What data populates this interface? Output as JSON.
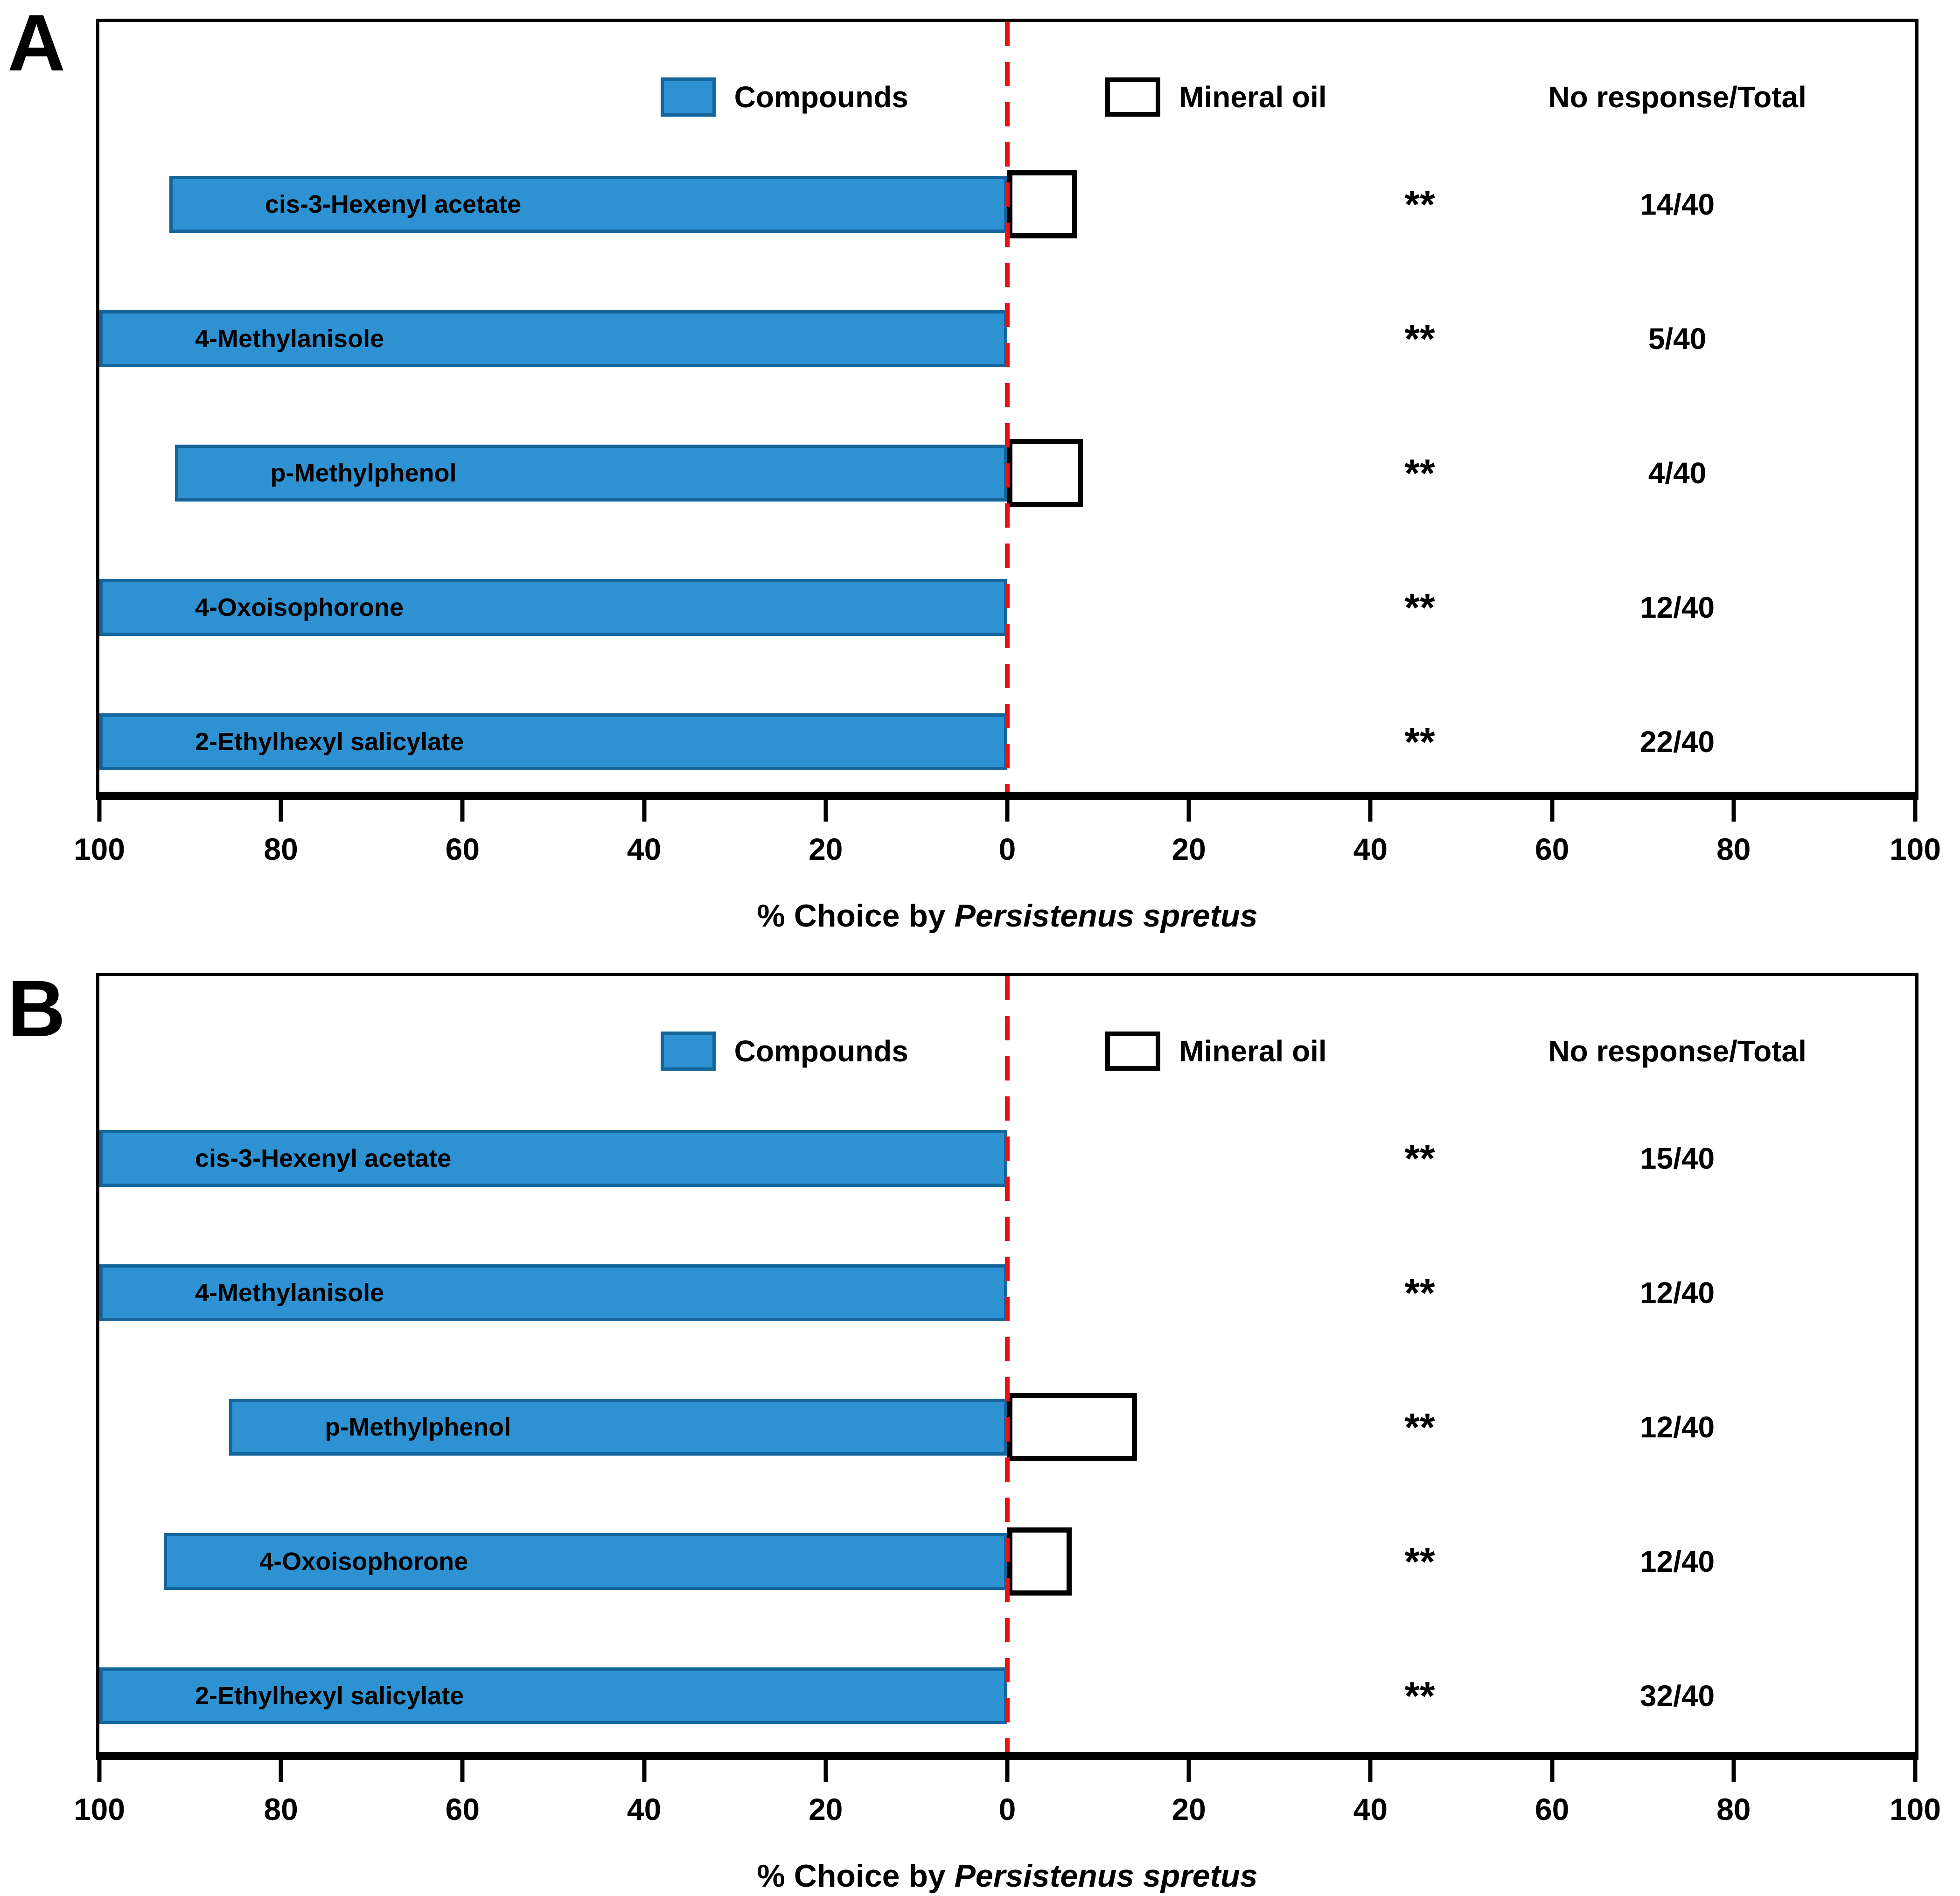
{
  "page": {
    "panel_labels": [
      "A",
      "B"
    ],
    "background": "#ffffff"
  },
  "colors": {
    "compound_fill": "#2E92D2",
    "compound_stroke": "#15659D",
    "mineral_oil_fill": "#FFFFFF",
    "mineral_oil_stroke": "#000000",
    "zero_line": "#EE1111",
    "axis": "#000000",
    "text": "#000000"
  },
  "chart_data": [
    {
      "type": "bar",
      "panel_label": "A",
      "orientation": "horizontal-diverging",
      "legend_position": "top-inside",
      "grid": false,
      "legend": [
        {
          "name": "compounds",
          "label": "Compounds"
        },
        {
          "name": "mineral-oil",
          "label": "Mineral oil"
        }
      ],
      "extra_column_header": "No response/Total",
      "x_axis": {
        "tick_labels": [
          "100",
          "80",
          "60",
          "40",
          "20",
          "0",
          "20",
          "40",
          "60",
          "80",
          "100"
        ],
        "left_range": [
          100,
          0
        ],
        "right_range": [
          0,
          100
        ],
        "title_prefix": "% Choice by ",
        "title_species": "Persistenus spretus"
      },
      "rows": [
        {
          "compound": "cis-3-Hexenyl acetate",
          "compound_pct": 92.3,
          "mineral_oil_pct": 7.7,
          "significance": "**",
          "no_response_total": "14/40"
        },
        {
          "compound": "4-Methylanisole",
          "compound_pct": 100,
          "mineral_oil_pct": 0,
          "significance": "**",
          "no_response_total": "5/40"
        },
        {
          "compound": "p-Methylphenol",
          "compound_pct": 91.7,
          "mineral_oil_pct": 8.3,
          "significance": "**",
          "no_response_total": "4/40"
        },
        {
          "compound": "4-Oxoisophorone",
          "compound_pct": 100,
          "mineral_oil_pct": 0,
          "significance": "**",
          "no_response_total": "12/40"
        },
        {
          "compound": "2-Ethylhexyl salicylate",
          "compound_pct": 100,
          "mineral_oil_pct": 0,
          "significance": "**",
          "no_response_total": "22/40"
        }
      ]
    },
    {
      "type": "bar",
      "panel_label": "B",
      "orientation": "horizontal-diverging",
      "legend_position": "top-inside",
      "grid": false,
      "legend": [
        {
          "name": "compounds",
          "label": "Compounds"
        },
        {
          "name": "mineral-oil",
          "label": "Mineral oil"
        }
      ],
      "extra_column_header": "No response/Total",
      "x_axis": {
        "tick_labels": [
          "100",
          "80",
          "60",
          "40",
          "20",
          "0",
          "20",
          "40",
          "60",
          "80",
          "100"
        ],
        "left_range": [
          100,
          0
        ],
        "right_range": [
          0,
          100
        ],
        "title_prefix": "% Choice by ",
        "title_species": "Persistenus spretus"
      },
      "rows": [
        {
          "compound": "cis-3-Hexenyl acetate",
          "compound_pct": 100,
          "mineral_oil_pct": 0,
          "significance": "**",
          "no_response_total": "15/40"
        },
        {
          "compound": "4-Methylanisole",
          "compound_pct": 100,
          "mineral_oil_pct": 0,
          "significance": "**",
          "no_response_total": "12/40"
        },
        {
          "compound": "p-Methylphenol",
          "compound_pct": 85.7,
          "mineral_oil_pct": 14.3,
          "significance": "**",
          "no_response_total": "12/40"
        },
        {
          "compound": "4-Oxoisophorone",
          "compound_pct": 92.9,
          "mineral_oil_pct": 7.1,
          "significance": "**",
          "no_response_total": "12/40"
        },
        {
          "compound": "2-Ethylhexyl salicylate",
          "compound_pct": 100,
          "mineral_oil_pct": 0,
          "significance": "**",
          "no_response_total": "32/40"
        }
      ]
    }
  ]
}
